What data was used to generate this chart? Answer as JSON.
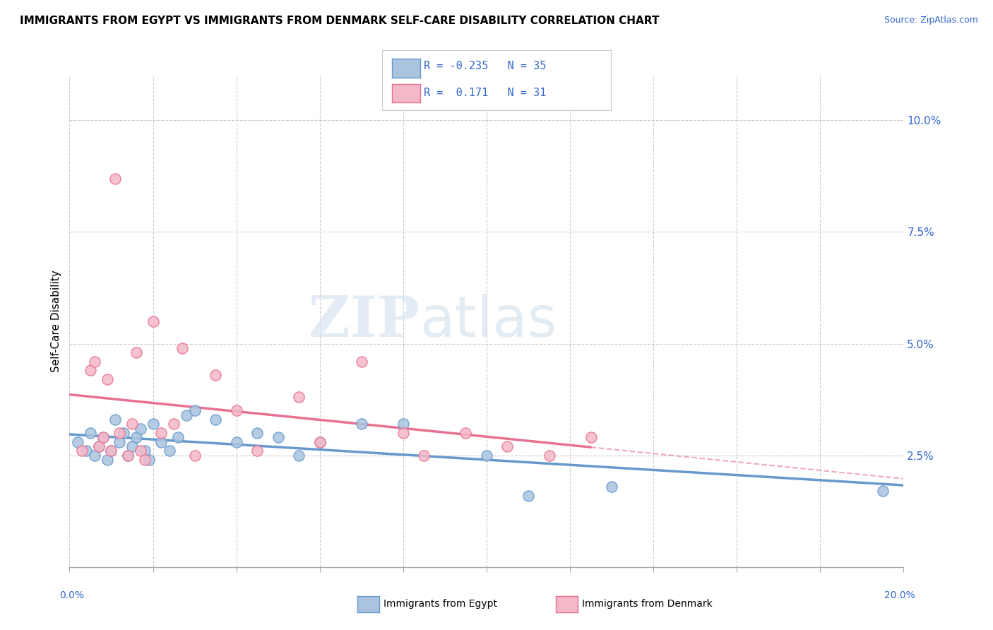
{
  "title": "IMMIGRANTS FROM EGYPT VS IMMIGRANTS FROM DENMARK SELF-CARE DISABILITY CORRELATION CHART",
  "source": "Source: ZipAtlas.com",
  "ylabel": "Self-Care Disability",
  "xlim": [
    0.0,
    20.0
  ],
  "ylim": [
    0.0,
    11.0
  ],
  "yticks_right": [
    2.5,
    5.0,
    7.5,
    10.0
  ],
  "ytick_labels_right": [
    "2.5%",
    "5.0%",
    "7.5%",
    "10.0%"
  ],
  "egypt_color": "#6699cc",
  "egypt_fill": "#aac4e0",
  "denmark_color": "#e87090",
  "denmark_fill": "#f4b8c8",
  "egypt_R": -0.235,
  "egypt_N": 35,
  "denmark_R": 0.171,
  "denmark_N": 31,
  "legend_R_color": "#3366cc",
  "egypt_scatter_x": [
    0.2,
    0.4,
    0.5,
    0.6,
    0.7,
    0.8,
    0.9,
    1.0,
    1.1,
    1.2,
    1.3,
    1.4,
    1.5,
    1.6,
    1.7,
    1.8,
    1.9,
    2.0,
    2.2,
    2.4,
    2.6,
    2.8,
    3.0,
    3.5,
    4.0,
    4.5,
    5.0,
    5.5,
    6.0,
    7.0,
    8.0,
    10.0,
    11.0,
    13.0,
    19.5
  ],
  "egypt_scatter_y": [
    2.8,
    2.6,
    3.0,
    2.5,
    2.7,
    2.9,
    2.4,
    2.6,
    3.3,
    2.8,
    3.0,
    2.5,
    2.7,
    2.9,
    3.1,
    2.6,
    2.4,
    3.2,
    2.8,
    2.6,
    2.9,
    3.4,
    3.5,
    3.3,
    2.8,
    3.0,
    2.9,
    2.5,
    2.8,
    3.2,
    3.2,
    2.5,
    1.6,
    1.8,
    1.7
  ],
  "denmark_scatter_x": [
    0.3,
    0.5,
    0.6,
    0.7,
    0.8,
    0.9,
    1.0,
    1.1,
    1.2,
    1.4,
    1.5,
    1.6,
    1.7,
    1.8,
    2.0,
    2.2,
    2.5,
    2.7,
    3.0,
    3.5,
    4.0,
    4.5,
    5.5,
    6.0,
    7.0,
    8.0,
    8.5,
    9.5,
    10.5,
    11.5,
    12.5
  ],
  "denmark_scatter_y": [
    2.6,
    4.4,
    4.6,
    2.7,
    2.9,
    4.2,
    2.6,
    8.7,
    3.0,
    2.5,
    3.2,
    4.8,
    2.6,
    2.4,
    5.5,
    3.0,
    3.2,
    4.9,
    2.5,
    4.3,
    3.5,
    2.6,
    3.8,
    2.8,
    4.6,
    3.0,
    2.5,
    3.0,
    2.7,
    2.5,
    2.9
  ],
  "background_color": "#ffffff",
  "grid_color": "#cccccc",
  "watermark_zip": "ZIP",
  "watermark_atlas": "atlas"
}
